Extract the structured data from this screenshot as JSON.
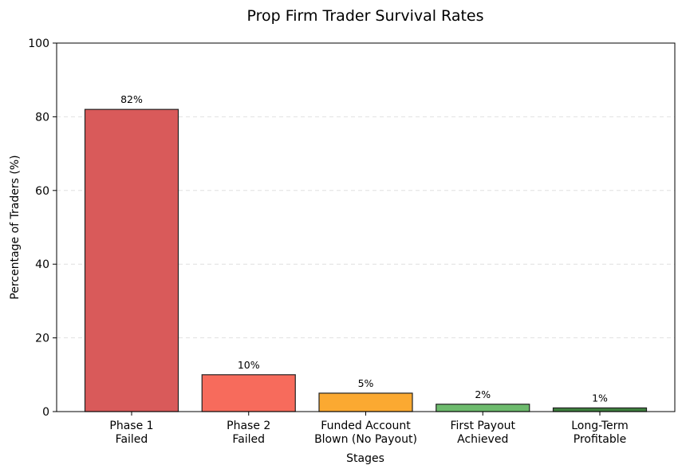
{
  "chart_data": {
    "type": "bar",
    "title": "Prop Firm Trader Survival Rates",
    "xlabel": "Stages",
    "ylabel": "Percentage of Traders (%)",
    "ylim": [
      0,
      100
    ],
    "yticks": [
      0,
      20,
      40,
      60,
      80,
      100
    ],
    "grid": "y-dashed",
    "categories": [
      [
        "Phase 1",
        "Failed"
      ],
      [
        "Phase 2",
        "Failed"
      ],
      [
        "Funded Account",
        "Blown (No Payout)"
      ],
      [
        "First Payout",
        "Achieved"
      ],
      [
        "Long-Term",
        "Profitable"
      ]
    ],
    "values": [
      82,
      10,
      5,
      2,
      1
    ],
    "data_labels": [
      "82%",
      "10%",
      "5%",
      "2%",
      "1%"
    ],
    "colors": [
      "#d95a5a",
      "#f76b5c",
      "#fba931",
      "#6dbb6d",
      "#3f7f3f"
    ]
  }
}
